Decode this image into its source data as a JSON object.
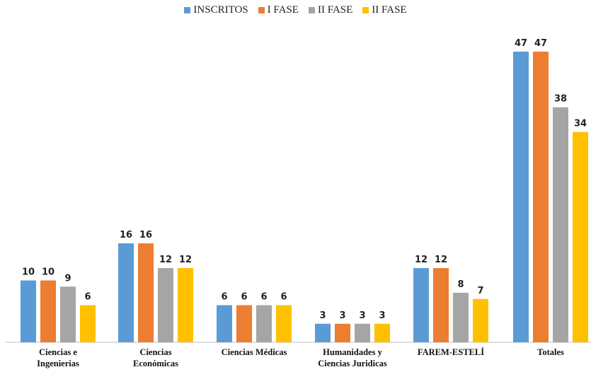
{
  "chart_data": {
    "type": "bar",
    "categories": [
      [
        "Ciencias e",
        "Ingenierias"
      ],
      [
        "Ciencias",
        "Económicas"
      ],
      [
        "Ciencias Médicas"
      ],
      [
        "Humanidades y",
        "Ciencias Juridicas"
      ],
      [
        "FAREM-ESTELÍ"
      ],
      [
        "Totales"
      ]
    ],
    "series": [
      {
        "name": "INSCRITOS",
        "color": "#5B9BD5",
        "values": [
          10,
          16,
          6,
          3,
          12,
          47
        ]
      },
      {
        "name": "I FASE",
        "color": "#ED7D31",
        "values": [
          10,
          16,
          6,
          3,
          12,
          47
        ]
      },
      {
        "name": "II FASE",
        "color": "#A5A5A5",
        "values": [
          9,
          12,
          6,
          3,
          8,
          38
        ]
      },
      {
        "name": "II FASE",
        "color": "#FFC000",
        "values": [
          6,
          12,
          6,
          3,
          7,
          34
        ]
      }
    ],
    "ylim": [
      0,
      47
    ],
    "grid": false,
    "legend_position": "top-center",
    "data_labels": true
  }
}
